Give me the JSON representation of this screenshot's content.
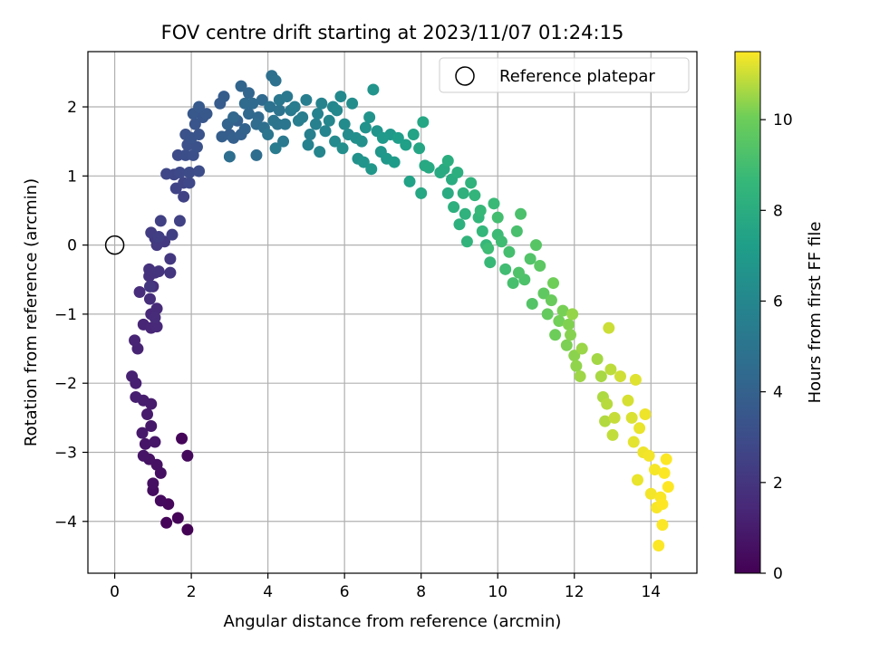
{
  "chart_data": {
    "type": "scatter",
    "title": "FOV centre drift starting at 2023/11/07 01:24:15",
    "xlabel": "Angular distance from reference (arcmin)",
    "ylabel": "Rotation from reference (arcmin)",
    "xlim": [
      -0.7,
      15.2
    ],
    "ylim": [
      -4.75,
      2.8
    ],
    "xticks": [
      0,
      2,
      4,
      6,
      8,
      10,
      12,
      14
    ],
    "yticks": [
      -4,
      -3,
      -2,
      -1,
      0,
      1,
      2
    ],
    "grid": true,
    "colormap": "viridis",
    "colorbar": {
      "label": "Hours from first FF file",
      "min": 0,
      "max": 11.5,
      "ticks": [
        0,
        2,
        4,
        6,
        8,
        10
      ]
    },
    "legend": {
      "position": "top-right",
      "entries": [
        "Reference platepar"
      ]
    },
    "reference": {
      "x": 0,
      "y": 0,
      "label": "Reference platepar"
    },
    "points": [
      [
        1.9,
        -4.12,
        0.05
      ],
      [
        1.65,
        -3.95,
        0.12
      ],
      [
        1.35,
        -4.02,
        0.18
      ],
      [
        1.4,
        -3.75,
        0.25
      ],
      [
        1.75,
        -2.8,
        0.2
      ],
      [
        1.9,
        -3.05,
        0.3
      ],
      [
        1.2,
        -3.7,
        0.35
      ],
      [
        1.0,
        -3.55,
        0.45
      ],
      [
        1.2,
        -3.3,
        0.5
      ],
      [
        1.0,
        -3.45,
        0.55
      ],
      [
        1.1,
        -3.18,
        0.6
      ],
      [
        0.9,
        -3.1,
        0.65
      ],
      [
        0.75,
        -3.05,
        0.7
      ],
      [
        0.8,
        -2.88,
        0.75
      ],
      [
        1.05,
        -2.85,
        0.8
      ],
      [
        0.95,
        -2.62,
        0.85
      ],
      [
        0.72,
        -2.72,
        0.9
      ],
      [
        0.85,
        -2.45,
        0.95
      ],
      [
        0.95,
        -2.3,
        1.0
      ],
      [
        0.75,
        -2.25,
        1.05
      ],
      [
        0.55,
        -2.2,
        1.1
      ],
      [
        0.55,
        -2.0,
        1.15
      ],
      [
        0.45,
        -1.9,
        1.2
      ],
      [
        0.6,
        -1.5,
        1.25
      ],
      [
        0.52,
        -1.38,
        1.3
      ],
      [
        0.75,
        -1.15,
        1.35
      ],
      [
        0.95,
        -1.2,
        1.4
      ],
      [
        1.1,
        -1.18,
        1.45
      ],
      [
        0.95,
        -1.0,
        1.5
      ],
      [
        1.1,
        -0.92,
        1.55
      ],
      [
        1.05,
        -1.05,
        1.6
      ],
      [
        0.65,
        -0.68,
        1.65
      ],
      [
        0.92,
        -0.78,
        1.7
      ],
      [
        1.0,
        -0.6,
        1.75
      ],
      [
        0.9,
        -0.45,
        1.8
      ],
      [
        0.9,
        -0.35,
        1.85
      ],
      [
        1.05,
        -0.4,
        1.9
      ],
      [
        1.15,
        -0.38,
        1.95
      ],
      [
        1.45,
        -0.4,
        2.0
      ],
      [
        0.92,
        -0.6,
        2.05
      ],
      [
        1.45,
        -0.2,
        2.1
      ],
      [
        1.3,
        0.05,
        2.15
      ],
      [
        1.1,
        0.0,
        2.2
      ],
      [
        1.05,
        0.1,
        2.25
      ],
      [
        0.95,
        0.18,
        2.3
      ],
      [
        1.15,
        0.12,
        2.35
      ],
      [
        1.5,
        0.15,
        2.4
      ],
      [
        1.2,
        0.35,
        2.45
      ],
      [
        1.7,
        0.35,
        2.5
      ],
      [
        1.8,
        0.7,
        2.55
      ],
      [
        1.6,
        0.82,
        2.6
      ],
      [
        1.8,
        0.9,
        2.65
      ],
      [
        1.55,
        1.02,
        2.7
      ],
      [
        1.35,
        1.03,
        2.75
      ],
      [
        1.95,
        0.9,
        2.8
      ],
      [
        1.7,
        1.05,
        2.85
      ],
      [
        1.65,
        1.3,
        2.9
      ],
      [
        1.95,
        1.05,
        2.95
      ],
      [
        2.2,
        1.07,
        3.0
      ],
      [
        1.85,
        1.3,
        3.05
      ],
      [
        2.05,
        1.3,
        3.1
      ],
      [
        1.9,
        1.45,
        3.15
      ],
      [
        2.15,
        1.42,
        3.2
      ],
      [
        1.85,
        1.6,
        3.25
      ],
      [
        2.0,
        1.55,
        3.3
      ],
      [
        2.2,
        1.6,
        3.35
      ],
      [
        2.1,
        1.75,
        3.4
      ],
      [
        2.3,
        1.85,
        3.45
      ],
      [
        2.05,
        1.9,
        3.5
      ],
      [
        2.4,
        1.9,
        3.55
      ],
      [
        2.2,
        2.0,
        3.6
      ],
      [
        2.75,
        2.05,
        3.7
      ],
      [
        2.85,
        2.15,
        3.75
      ],
      [
        3.0,
        1.6,
        3.8
      ],
      [
        2.8,
        1.57,
        3.85
      ],
      [
        3.1,
        1.55,
        3.9
      ],
      [
        3.2,
        1.8,
        3.95
      ],
      [
        3.3,
        1.6,
        4.0
      ],
      [
        3.4,
        1.68,
        4.05
      ],
      [
        2.95,
        1.75,
        4.1
      ],
      [
        3.3,
        2.3,
        4.15
      ],
      [
        3.5,
        2.2,
        4.2
      ],
      [
        3.1,
        1.85,
        4.25
      ],
      [
        3.5,
        1.9,
        4.3
      ],
      [
        3.75,
        1.85,
        4.35
      ],
      [
        3.6,
        2.05,
        4.4
      ],
      [
        3.85,
        2.1,
        4.45
      ],
      [
        3.4,
        2.05,
        4.5
      ],
      [
        3.7,
        1.75,
        4.55
      ],
      [
        3.7,
        1.3,
        4.6
      ],
      [
        3.0,
        1.28,
        4.65
      ],
      [
        3.9,
        1.7,
        4.7
      ],
      [
        4.1,
        2.45,
        4.75
      ],
      [
        4.2,
        2.38,
        4.8
      ],
      [
        4.05,
        2.0,
        4.85
      ],
      [
        4.3,
        1.95,
        4.9
      ],
      [
        4.15,
        1.8,
        4.95
      ],
      [
        4.25,
        1.75,
        5.0
      ],
      [
        4.0,
        1.6,
        5.05
      ],
      [
        4.45,
        1.75,
        5.1
      ],
      [
        4.3,
        2.1,
        5.15
      ],
      [
        4.5,
        2.15,
        5.2
      ],
      [
        4.4,
        1.5,
        5.25
      ],
      [
        4.6,
        1.95,
        5.3
      ],
      [
        4.2,
        1.4,
        5.35
      ],
      [
        4.7,
        2.0,
        5.4
      ],
      [
        4.8,
        1.8,
        5.45
      ],
      [
        4.9,
        1.85,
        5.5
      ],
      [
        5.0,
        2.1,
        5.55
      ],
      [
        5.1,
        1.6,
        5.6
      ],
      [
        5.25,
        1.75,
        5.65
      ],
      [
        5.05,
        1.45,
        5.7
      ],
      [
        5.3,
        1.9,
        5.75
      ],
      [
        5.4,
        2.05,
        5.8
      ],
      [
        5.5,
        1.65,
        5.85
      ],
      [
        5.35,
        1.35,
        5.9
      ],
      [
        5.6,
        1.8,
        5.95
      ],
      [
        5.7,
        2.0,
        6.0
      ],
      [
        5.8,
        1.95,
        6.05
      ],
      [
        5.9,
        2.15,
        6.1
      ],
      [
        5.75,
        1.5,
        6.15
      ],
      [
        6.0,
        1.75,
        6.2
      ],
      [
        6.1,
        1.6,
        6.25
      ],
      [
        6.2,
        2.05,
        6.3
      ],
      [
        5.95,
        1.4,
        6.35
      ],
      [
        6.3,
        1.55,
        6.4
      ],
      [
        6.45,
        1.5,
        6.45
      ],
      [
        6.35,
        1.25,
        6.5
      ],
      [
        6.55,
        1.7,
        6.55
      ],
      [
        6.65,
        1.85,
        6.6
      ],
      [
        6.75,
        2.25,
        6.65
      ],
      [
        6.5,
        1.2,
        6.7
      ],
      [
        6.85,
        1.65,
        6.75
      ],
      [
        6.95,
        1.35,
        6.8
      ],
      [
        6.7,
        1.1,
        6.85
      ],
      [
        7.1,
        1.25,
        6.9
      ],
      [
        7.2,
        1.6,
        6.95
      ],
      [
        7.0,
        1.55,
        7.0
      ],
      [
        7.3,
        1.2,
        7.1
      ],
      [
        7.4,
        1.55,
        7.2
      ],
      [
        7.6,
        1.45,
        7.3
      ],
      [
        7.7,
        0.92,
        7.4
      ],
      [
        7.8,
        1.6,
        7.5
      ],
      [
        7.95,
        1.4,
        7.6
      ],
      [
        8.05,
        1.78,
        7.65
      ],
      [
        8.0,
        0.75,
        7.7
      ],
      [
        8.1,
        1.15,
        7.75
      ],
      [
        8.2,
        1.12,
        7.8
      ],
      [
        8.5,
        1.05,
        7.85
      ],
      [
        8.6,
        1.1,
        7.9
      ],
      [
        8.7,
        0.75,
        7.95
      ],
      [
        8.8,
        0.95,
        8.0
      ],
      [
        8.7,
        1.22,
        8.05
      ],
      [
        8.95,
        1.05,
        8.1
      ],
      [
        8.85,
        0.55,
        8.15
      ],
      [
        9.0,
        0.3,
        8.2
      ],
      [
        9.1,
        0.75,
        8.25
      ],
      [
        9.15,
        0.45,
        8.3
      ],
      [
        9.3,
        0.9,
        8.35
      ],
      [
        9.2,
        0.05,
        8.4
      ],
      [
        9.4,
        0.72,
        8.45
      ],
      [
        9.5,
        0.4,
        8.5
      ],
      [
        9.6,
        0.2,
        8.55
      ],
      [
        9.7,
        0.0,
        8.6
      ],
      [
        9.55,
        0.5,
        8.65
      ],
      [
        9.8,
        -0.25,
        8.7
      ],
      [
        9.9,
        0.6,
        8.75
      ],
      [
        10.0,
        0.15,
        8.8
      ],
      [
        9.75,
        -0.05,
        8.85
      ],
      [
        10.1,
        0.05,
        8.9
      ],
      [
        10.2,
        -0.35,
        8.95
      ],
      [
        10.0,
        0.4,
        9.0
      ],
      [
        10.3,
        -0.1,
        9.05
      ],
      [
        10.4,
        -0.55,
        9.1
      ],
      [
        10.5,
        0.2,
        9.15
      ],
      [
        10.6,
        0.45,
        9.2
      ],
      [
        10.7,
        -0.5,
        9.25
      ],
      [
        10.55,
        -0.4,
        9.3
      ],
      [
        10.85,
        -0.2,
        9.35
      ],
      [
        10.9,
        -0.85,
        9.4
      ],
      [
        11.0,
        0.0,
        9.5
      ],
      [
        11.1,
        -0.3,
        9.6
      ],
      [
        11.2,
        -0.7,
        9.7
      ],
      [
        11.3,
        -1.0,
        9.8
      ],
      [
        11.4,
        -0.8,
        9.9
      ],
      [
        11.5,
        -1.3,
        10.0
      ],
      [
        11.45,
        -0.55,
        10.05
      ],
      [
        11.6,
        -1.1,
        10.1
      ],
      [
        11.7,
        -0.95,
        10.15
      ],
      [
        11.8,
        -1.45,
        10.2
      ],
      [
        11.85,
        -1.15,
        10.25
      ],
      [
        11.9,
        -1.3,
        10.3
      ],
      [
        12.0,
        -1.6,
        10.35
      ],
      [
        12.05,
        -1.75,
        10.4
      ],
      [
        11.95,
        -1.0,
        10.45
      ],
      [
        12.2,
        -1.5,
        10.5
      ],
      [
        12.15,
        -1.9,
        10.55
      ],
      [
        12.6,
        -1.65,
        10.6
      ],
      [
        12.7,
        -1.9,
        10.65
      ],
      [
        12.75,
        -2.2,
        10.7
      ],
      [
        12.8,
        -2.55,
        10.75
      ],
      [
        12.85,
        -2.3,
        10.8
      ],
      [
        12.95,
        -1.8,
        10.85
      ],
      [
        13.0,
        -2.75,
        10.9
      ],
      [
        13.05,
        -2.5,
        10.95
      ],
      [
        12.9,
        -1.2,
        11.0
      ],
      [
        13.2,
        -1.9,
        11.05
      ],
      [
        13.4,
        -2.25,
        11.1
      ],
      [
        13.5,
        -2.5,
        11.15
      ],
      [
        13.6,
        -1.95,
        11.2
      ],
      [
        13.55,
        -2.85,
        11.25
      ],
      [
        13.65,
        -3.4,
        11.3
      ],
      [
        13.7,
        -2.65,
        11.3
      ],
      [
        13.8,
        -3.0,
        11.35
      ],
      [
        13.85,
        -2.45,
        11.35
      ],
      [
        13.95,
        -3.05,
        11.4
      ],
      [
        14.0,
        -3.6,
        11.4
      ],
      [
        14.1,
        -3.25,
        11.42
      ],
      [
        14.15,
        -3.8,
        11.44
      ],
      [
        14.25,
        -3.65,
        11.46
      ],
      [
        14.2,
        -4.35,
        11.48
      ],
      [
        14.3,
        -4.05,
        11.48
      ],
      [
        14.35,
        -3.3,
        11.49
      ],
      [
        14.4,
        -3.1,
        11.49
      ],
      [
        14.45,
        -3.5,
        11.5
      ],
      [
        14.3,
        -3.75,
        11.5
      ]
    ]
  }
}
